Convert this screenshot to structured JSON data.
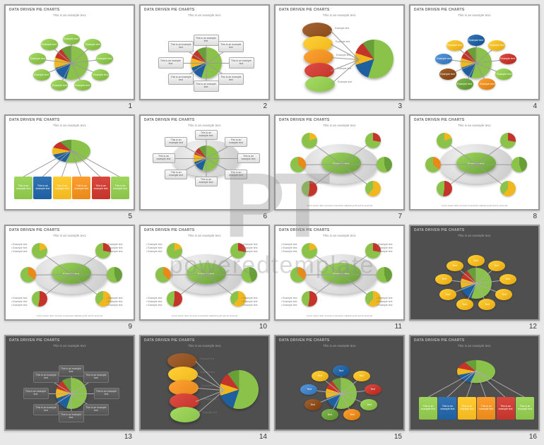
{
  "slide_title": "DATA DRIVEN PIE CHARTS",
  "subtitle": "This is an example text.",
  "example_text": "Example text",
  "this_is": "This is an example text",
  "footer": "Lorem ipsum dolor sit amet consectetur adipiscing elit sed do eiusmod",
  "text_label": "Text",
  "watermark_logo": "PT",
  "watermark_text": "poweredtemplate",
  "colors": {
    "green": "#8bc34a",
    "green_dark": "#689f38",
    "blue": "#1e5fa0",
    "blue_light": "#3f7fc4",
    "yellow": "#f0b81e",
    "orange": "#e8891a",
    "red": "#c4342a",
    "brown": "#8a4a1a",
    "grey": "#9e9e9e"
  },
  "pie_main": {
    "slices": [
      {
        "pct": 55,
        "color": "#8bc34a"
      },
      {
        "pct": 15,
        "color": "#1e5fa0"
      },
      {
        "pct": 10,
        "color": "#f0b81e"
      },
      {
        "pct": 10,
        "color": "#c4342a"
      },
      {
        "pct": 10,
        "color": "#689f38"
      }
    ]
  },
  "slides": [
    {
      "num": 1,
      "bg": "light",
      "layout": "radial_sat",
      "sat_color": "#8bc34a"
    },
    {
      "num": 2,
      "bg": "light",
      "layout": "radial_boxes"
    },
    {
      "num": 3,
      "bg": "light",
      "layout": "stack_ellipses"
    },
    {
      "num": 4,
      "bg": "light",
      "layout": "radial_sat_multi"
    },
    {
      "num": 5,
      "bg": "light",
      "layout": "fan_boxes"
    },
    {
      "num": 6,
      "bg": "light",
      "layout": "platter_boxes"
    },
    {
      "num": 7,
      "bg": "light",
      "layout": "platter_minis"
    },
    {
      "num": 8,
      "bg": "light",
      "layout": "platter_minis"
    },
    {
      "num": 9,
      "bg": "light",
      "layout": "platter_minis_bullets"
    },
    {
      "num": 10,
      "bg": "light",
      "layout": "platter_minis_bullets"
    },
    {
      "num": 11,
      "bg": "light",
      "layout": "platter_minis_bullets"
    },
    {
      "num": 12,
      "bg": "dark",
      "layout": "radial_sat_multi"
    },
    {
      "num": 13,
      "bg": "dark",
      "layout": "radial_boxes"
    },
    {
      "num": 14,
      "bg": "dark",
      "layout": "stack_ellipses"
    },
    {
      "num": 15,
      "bg": "dark",
      "layout": "radial_sat_multi"
    },
    {
      "num": 16,
      "bg": "dark",
      "layout": "fan_boxes"
    }
  ],
  "multi_sat_colors": [
    "#1e5fa0",
    "#f0b81e",
    "#c4342a",
    "#8bc34a",
    "#e8891a",
    "#689f38",
    "#8a4a1a",
    "#3f7fc4",
    "#f0b81e"
  ],
  "stack_colors": [
    "#8a4a1a",
    "#f0b81e",
    "#e8891a",
    "#c4342a",
    "#8bc34a"
  ],
  "fan_colors": [
    "#8bc34a",
    "#1e5fa0",
    "#f0b81e",
    "#e8891a",
    "#c4342a"
  ],
  "mini_colors": [
    {
      "main": "#8bc34a",
      "slice": "#f0b81e"
    },
    {
      "main": "#8bc34a",
      "slice": "#c4342a"
    },
    {
      "main": "#8bc34a",
      "slice": "#e8891a"
    },
    {
      "main": "#8bc34a",
      "slice": "#689f38"
    },
    {
      "main": "#8bc34a",
      "slice": "#c4342a"
    },
    {
      "main": "#8bc34a",
      "slice": "#f0b81e"
    }
  ],
  "slide12_sat_color": "#f0b81e"
}
